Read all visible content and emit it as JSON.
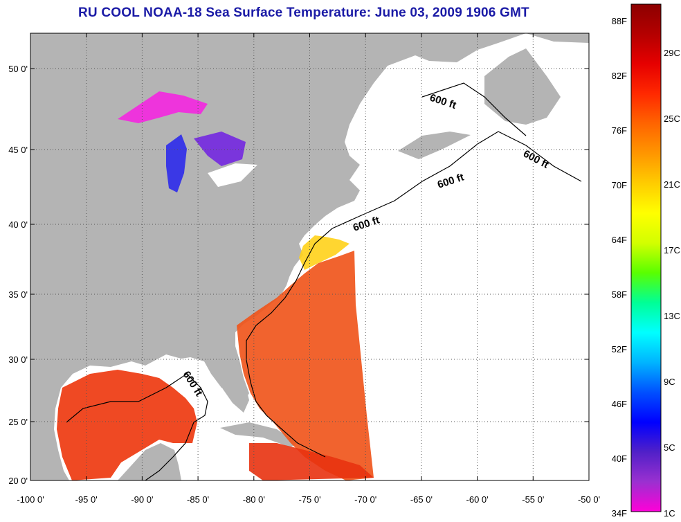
{
  "title": "RU COOL  NOAA-18  Sea Surface Temperature:  June 03, 2009 1906 GMT",
  "map": {
    "lon_ticks": [
      "-100 0'",
      "-95 0'",
      "-90 0'",
      "-85 0'",
      "-80 0'",
      "-75 0'",
      "-70 0'",
      "-65 0'",
      "-60 0'",
      "-55 0'",
      "-50 0'"
    ],
    "lat_ticks": [
      "50 0'",
      "45 0'",
      "40 0'",
      "35 0'",
      "30 0'",
      "25 0'",
      "20 0'"
    ],
    "contour_label": "600 ft",
    "colors": {
      "land": "#b4b4b4",
      "cloud": "#ffffff",
      "grid": "#555555"
    }
  },
  "colorbar": {
    "fahrenheit_labels": [
      "88F",
      "82F",
      "76F",
      "70F",
      "64F",
      "58F",
      "52F",
      "46F",
      "40F",
      "34F"
    ],
    "celsius_labels": [
      "29C",
      "25C",
      "21C",
      "17C",
      "13C",
      "9C",
      "5C",
      "1C"
    ],
    "gradient_colors": [
      "#ff00d8",
      "#9a30d0",
      "#5020c8",
      "#0000ff",
      "#0050ff",
      "#00b4ff",
      "#00ffff",
      "#00ff96",
      "#5aff00",
      "#d2ff00",
      "#ffff00",
      "#ffcc00",
      "#ff9600",
      "#ff6400",
      "#ff2800",
      "#e60000",
      "#b40000",
      "#8c0000"
    ]
  }
}
